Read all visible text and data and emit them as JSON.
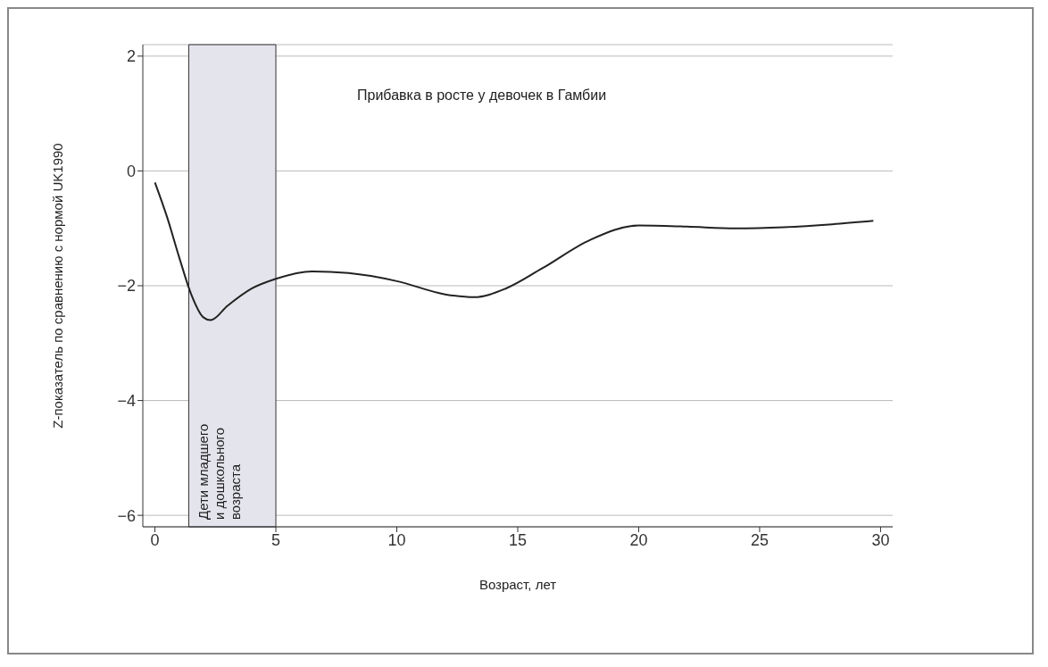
{
  "chart_data": {
    "type": "line",
    "title": "Прибавка в росте у девочек в Гамбии",
    "xlabel": "Возраст, лет",
    "ylabel": "Z-показатель по сравнению с нормой UK1990",
    "x": [
      0,
      0.5,
      1,
      1.5,
      2,
      2.3,
      3,
      4,
      5,
      6.5,
      8,
      10,
      12,
      13.2,
      14.5,
      16,
      18,
      20,
      22,
      24,
      26,
      28,
      29.7
    ],
    "series": [
      {
        "color": "#222222",
        "values": [
          -0.2,
          -0.8,
          -1.5,
          -2.15,
          -2.55,
          -2.6,
          -2.35,
          -2.05,
          -1.88,
          -1.75,
          -1.78,
          -1.92,
          -2.15,
          -2.2,
          -2.05,
          -1.7,
          -1.2,
          -0.95,
          -0.97,
          -1.0,
          -0.98,
          -0.93,
          -0.87
        ]
      }
    ],
    "xlim": [
      -0.5,
      30.5
    ],
    "ylim": [
      -6.2,
      2.2
    ],
    "xticks": [
      0,
      5,
      10,
      15,
      20,
      25,
      30
    ],
    "yticks": [
      -6,
      -4,
      -2,
      0,
      2
    ],
    "grid": "y",
    "bands": [
      {
        "axis": "x",
        "from": 1.4,
        "to": 5,
        "label": "Дети младшего и дошкольного возраста",
        "color": "#e4e4ec"
      }
    ]
  }
}
